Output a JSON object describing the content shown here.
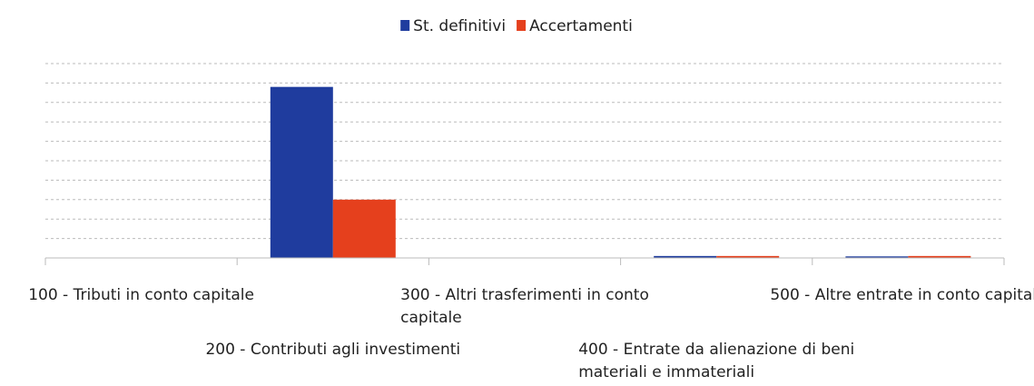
{
  "chart_data": {
    "type": "bar",
    "categories": [
      "100 - Tributi in conto capitale",
      "200 - Contributi agli investimenti",
      "300 - Altri trasferimenti in conto capitale",
      "400 - Entrate da alienazione di beni materiali e immateriali",
      "500 - Altre entrate in conto capitale"
    ],
    "series": [
      {
        "name": "St. definitivi",
        "color": "#1f3c9e",
        "values": [
          0,
          8.8,
          0,
          0.1,
          0.08
        ]
      },
      {
        "name": "Accertamenti",
        "color": "#e5401d",
        "values": [
          0,
          3.0,
          0,
          0.1,
          0.1
        ]
      }
    ],
    "ylim": [
      0,
      10
    ],
    "yticks": [
      0,
      1,
      2,
      3,
      4,
      5,
      6,
      7,
      8,
      9,
      10
    ],
    "grid": true,
    "legend": "top"
  }
}
